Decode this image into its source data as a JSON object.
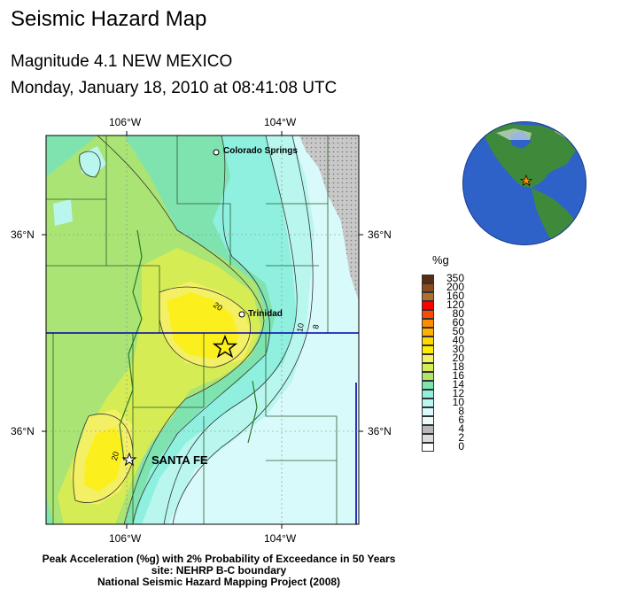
{
  "title": "Seismic Hazard Map",
  "event": {
    "line1": "Magnitude 4.1 NEW MEXICO",
    "line2": "Monday, January 18, 2010 at 08:41:08 UTC"
  },
  "map": {
    "top_lon_labels": [
      "106°W",
      "104°W"
    ],
    "bottom_lon_labels": [
      "106°W",
      "104°W"
    ],
    "left_lat_labels": [
      "36°N",
      "36°N"
    ],
    "right_lat_labels": [
      "36°N",
      "36°N"
    ],
    "places": [
      "Colorado Springs",
      "Trinidad",
      "SANTA FE"
    ],
    "contour_labels": [
      "20",
      "10",
      "8",
      "20"
    ]
  },
  "legend": {
    "title": "%g",
    "levels": [
      {
        "label": "350",
        "color": "#5a2c14"
      },
      {
        "label": "200",
        "color": "#8b4a20"
      },
      {
        "label": "160",
        "color": "#b0702d"
      },
      {
        "label": "120",
        "color": "#ff0000"
      },
      {
        "label": "80",
        "color": "#ff4a00"
      },
      {
        "label": "60",
        "color": "#ff8c00"
      },
      {
        "label": "50",
        "color": "#ffb000"
      },
      {
        "label": "40",
        "color": "#ffd800"
      },
      {
        "label": "30",
        "color": "#ffee00"
      },
      {
        "label": "20",
        "color": "#f4f066"
      },
      {
        "label": "18",
        "color": "#d6ec55"
      },
      {
        "label": "16",
        "color": "#b2e46a"
      },
      {
        "label": "14",
        "color": "#7fe3b0"
      },
      {
        "label": "12",
        "color": "#8ff0e0"
      },
      {
        "label": "10",
        "color": "#b8f6ee"
      },
      {
        "label": "8",
        "color": "#d8fafa"
      },
      {
        "label": "6",
        "color": "#ecfcfc"
      },
      {
        "label": "4",
        "color": "#b8b8b8"
      },
      {
        "label": "2",
        "color": "#dcdcdc"
      },
      {
        "label": "0",
        "color": "#ffffff"
      }
    ]
  },
  "caption": {
    "line1": "Peak Acceleration (%g) with 2% Probability of Exceedance in 50 Years",
    "line2": "site: NEHRP B-C boundary",
    "line3": "National Seismic Hazard Mapping Project (2008)"
  },
  "colors": {
    "state_border": "#0000aa",
    "epicenter_star": "#ff8c00",
    "globe_ocean": "#2f62c8",
    "globe_land": "#3f8a3a"
  }
}
